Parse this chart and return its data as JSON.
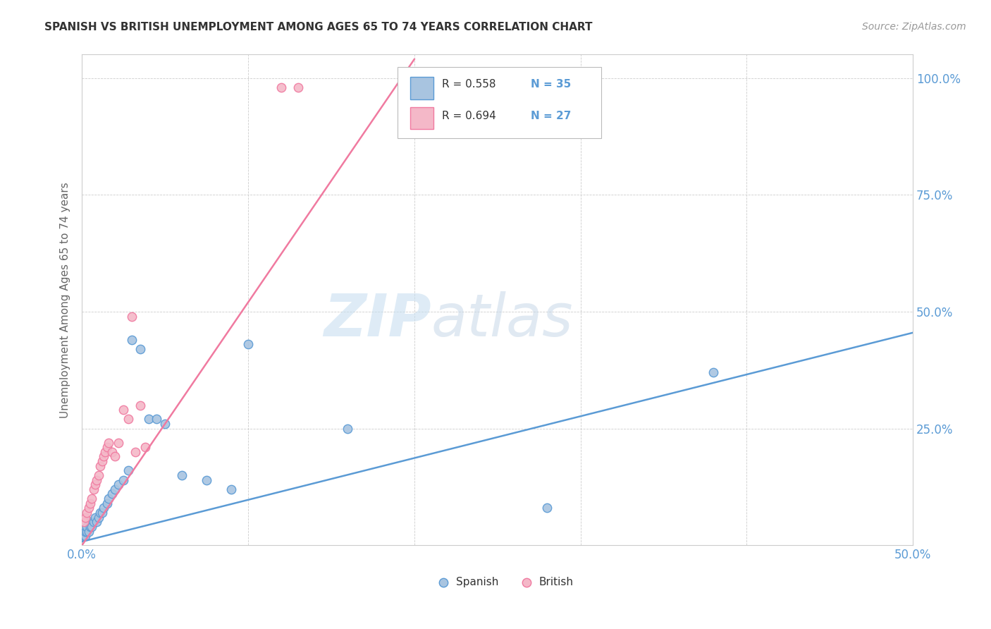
{
  "title": "SPANISH VS BRITISH UNEMPLOYMENT AMONG AGES 65 TO 74 YEARS CORRELATION CHART",
  "source": "Source: ZipAtlas.com",
  "ylabel": "Unemployment Among Ages 65 to 74 years",
  "xlim": [
    0.0,
    0.5
  ],
  "ylim": [
    0.0,
    1.05
  ],
  "spanish_color": "#a8c4e0",
  "british_color": "#f4b8c8",
  "spanish_line_color": "#5b9bd5",
  "british_line_color": "#f07aa0",
  "legend_R_spanish": "R = 0.558",
  "legend_N_spanish": "N = 35",
  "legend_R_british": "R = 0.694",
  "legend_N_british": "N = 27",
  "spanish_scatter_x": [
    0.001,
    0.002,
    0.002,
    0.003,
    0.003,
    0.004,
    0.005,
    0.005,
    0.006,
    0.007,
    0.008,
    0.009,
    0.01,
    0.011,
    0.012,
    0.013,
    0.015,
    0.016,
    0.018,
    0.02,
    0.022,
    0.025,
    0.028,
    0.03,
    0.035,
    0.04,
    0.045,
    0.05,
    0.06,
    0.075,
    0.09,
    0.1,
    0.16,
    0.28,
    0.38
  ],
  "spanish_scatter_y": [
    0.02,
    0.02,
    0.03,
    0.03,
    0.04,
    0.03,
    0.04,
    0.05,
    0.04,
    0.05,
    0.06,
    0.05,
    0.06,
    0.07,
    0.07,
    0.08,
    0.09,
    0.1,
    0.11,
    0.12,
    0.13,
    0.14,
    0.16,
    0.44,
    0.42,
    0.27,
    0.27,
    0.26,
    0.15,
    0.14,
    0.12,
    0.43,
    0.25,
    0.08,
    0.37
  ],
  "british_scatter_x": [
    0.001,
    0.002,
    0.003,
    0.004,
    0.005,
    0.006,
    0.007,
    0.008,
    0.009,
    0.01,
    0.011,
    0.012,
    0.013,
    0.014,
    0.015,
    0.016,
    0.018,
    0.02,
    0.022,
    0.025,
    0.028,
    0.03,
    0.032,
    0.035,
    0.038,
    0.12,
    0.13
  ],
  "british_scatter_y": [
    0.05,
    0.06,
    0.07,
    0.08,
    0.09,
    0.1,
    0.12,
    0.13,
    0.14,
    0.15,
    0.17,
    0.18,
    0.19,
    0.2,
    0.21,
    0.22,
    0.2,
    0.19,
    0.22,
    0.29,
    0.27,
    0.49,
    0.2,
    0.3,
    0.21,
    0.98,
    0.98
  ],
  "spanish_line": [
    0.0,
    0.008,
    0.5,
    0.455
  ],
  "british_line": [
    0.0,
    0.0,
    0.2,
    1.04
  ],
  "background_color": "#ffffff",
  "grid_color": "#cccccc"
}
